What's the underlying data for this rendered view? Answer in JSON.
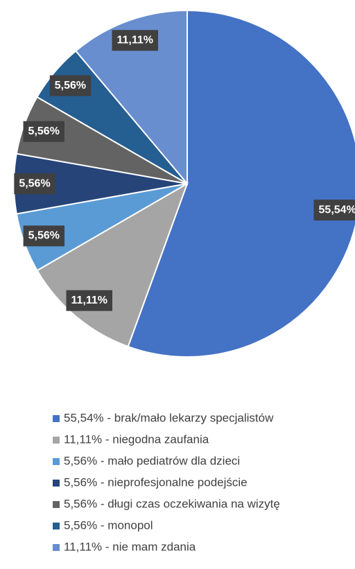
{
  "chart_data": {
    "type": "pie",
    "categories": [
      "55,54% - brak/mało lekarzy specjalistów",
      "11,11% - niegodna zaufania",
      "5,56% - mało pediatrów dla dzieci",
      "5,56% - nieprofesjonalne podejście",
      "5,56% - długi czas oczekiwania na wizytę",
      "5,56% - monopol",
      "11,11% - nie mam zdania"
    ],
    "values": [
      55.54,
      11.11,
      5.56,
      5.56,
      5.56,
      5.56,
      11.11
    ],
    "value_labels": [
      "55,54%",
      "11,11%",
      "5,56%",
      "5,56%",
      "5,56%",
      "5,56%",
      "11,11%"
    ],
    "colors": [
      "#4472c4",
      "#a5a5a5",
      "#5b9bd5",
      "#264478",
      "#636363",
      "#255e91",
      "#698ed0"
    ],
    "legend": "bottom"
  }
}
